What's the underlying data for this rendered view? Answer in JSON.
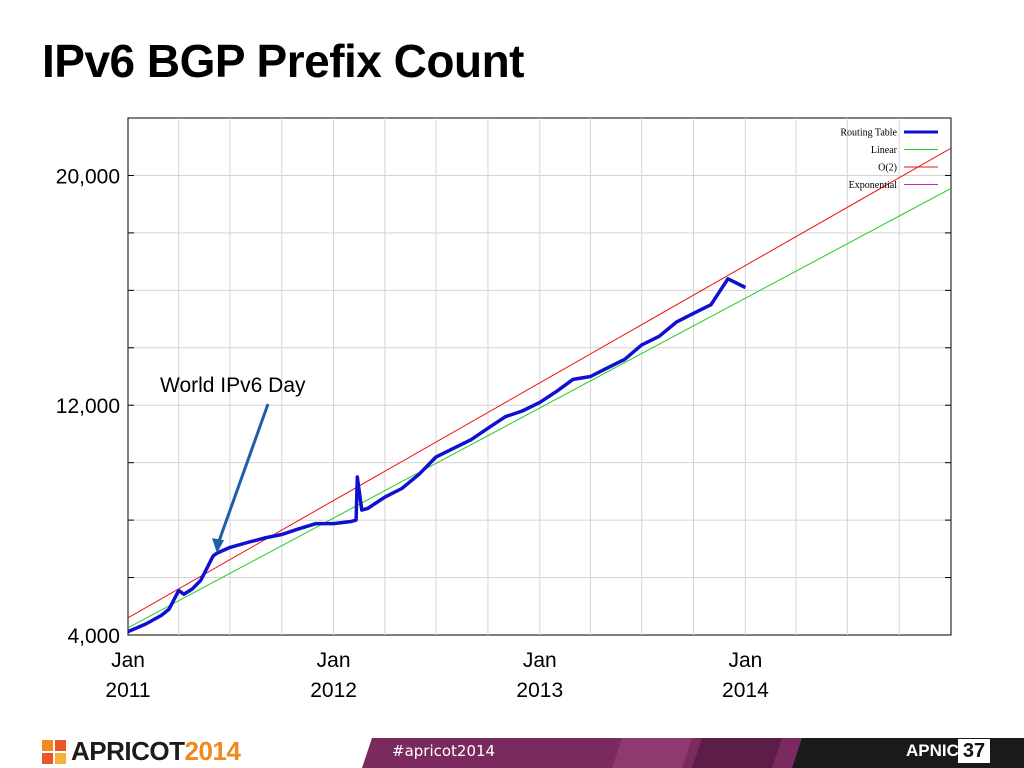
{
  "slide": {
    "title": "IPv6 BGP Prefix Count"
  },
  "chart_data": {
    "type": "line",
    "title": "",
    "xlabel": "",
    "ylabel": "",
    "xlim": [
      "2011-01-01",
      "2015-01-01"
    ],
    "ylim": [
      4000,
      22000
    ],
    "y_ticks": [
      {
        "value": 20000,
        "label": "20,000"
      },
      {
        "value": 12000,
        "label": "12,000"
      },
      {
        "value": 4000,
        "label": "4,000"
      }
    ],
    "x_ticks": [
      {
        "value": "2011-01-01",
        "label": [
          "Jan",
          "2011"
        ]
      },
      {
        "value": "2012-01-01",
        "label": [
          "Jan",
          "2012"
        ]
      },
      {
        "value": "2013-01-01",
        "label": [
          "Jan",
          "2013"
        ]
      },
      {
        "value": "2014-01-01",
        "label": [
          "Jan",
          "2014"
        ]
      }
    ],
    "grid": true,
    "legend_position": "top-right",
    "series": [
      {
        "name": "Routing Table",
        "color": "#1010d0",
        "x": [
          "2011-01-01",
          "2011-02-01",
          "2011-03-01",
          "2011-03-15",
          "2011-04-01",
          "2011-04-10",
          "2011-04-25",
          "2011-05-10",
          "2011-06-01",
          "2011-06-08",
          "2011-07-01",
          "2011-08-01",
          "2011-09-01",
          "2011-10-01",
          "2011-11-01",
          "2011-12-01",
          "2012-01-01",
          "2012-02-01",
          "2012-02-10",
          "2012-02-12",
          "2012-02-20",
          "2012-03-01",
          "2012-04-01",
          "2012-05-01",
          "2012-06-01",
          "2012-07-01",
          "2012-08-01",
          "2012-09-01",
          "2012-10-01",
          "2012-11-01",
          "2012-12-01",
          "2013-01-01",
          "2013-02-01",
          "2013-03-01",
          "2013-04-01",
          "2013-05-01",
          "2013-06-01",
          "2013-07-01",
          "2013-08-01",
          "2013-09-01",
          "2013-10-01",
          "2013-11-01",
          "2013-12-01",
          "2014-01-01"
        ],
        "y": [
          4120,
          4380,
          4680,
          4900,
          5550,
          5420,
          5600,
          5900,
          6750,
          6850,
          7050,
          7220,
          7380,
          7500,
          7700,
          7880,
          7880,
          7950,
          8000,
          9500,
          8350,
          8400,
          8800,
          9100,
          9600,
          10200,
          10500,
          10800,
          11200,
          11600,
          11800,
          12100,
          12500,
          12900,
          13000,
          13300,
          13600,
          14100,
          14400,
          14900,
          15200,
          15500,
          16400,
          16100
        ]
      },
      {
        "name": "Linear",
        "color": "#22cc22",
        "x": [
          "2011-01-01",
          "2015-01-01"
        ],
        "y": [
          4250,
          19550
        ]
      },
      {
        "name": "O(2)",
        "color": "#ee1111",
        "x": [
          "2011-01-01",
          "2015-01-01"
        ],
        "y": [
          4600,
          20950
        ]
      },
      {
        "name": "Exponential",
        "color": "#cc22cc",
        "x": [],
        "y": []
      }
    ],
    "annotations": [
      {
        "text": "World IPv6 Day",
        "x": "2011-06-08",
        "y": 6850
      }
    ]
  },
  "footer": {
    "brand": "APRICOT",
    "brand_year": "2014",
    "hashtag": "#apricot2014",
    "org": "APNIC",
    "org_number": "37",
    "colors": {
      "band": "#7a2a5e",
      "band_dark": "#1a1a1a",
      "orange": "#f08a1f"
    }
  }
}
